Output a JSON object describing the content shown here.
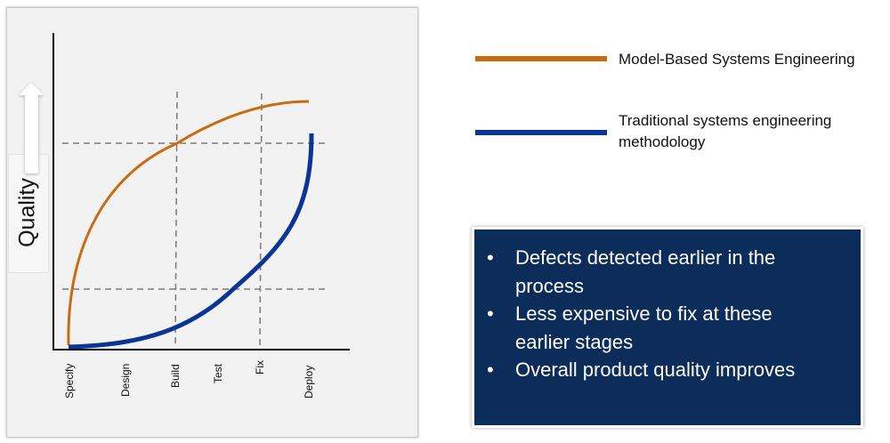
{
  "chart": {
    "y_axis_label": "Quality",
    "x_stages": [
      "Specify",
      "Design",
      "Build",
      "Test",
      "Fix",
      "Deploy"
    ],
    "colors": {
      "mbse": "#cc6a10",
      "traditional": "#0a3596"
    }
  },
  "legend": {
    "mbse": "Model-Based Systems Engineering",
    "traditional_line1": "Traditional systems engineering",
    "traditional_line2": "methodology"
  },
  "benefits": [
    "Defects detected earlier in the process",
    "Less expensive to fix at these earlier stages",
    "Overall product quality improves"
  ]
}
